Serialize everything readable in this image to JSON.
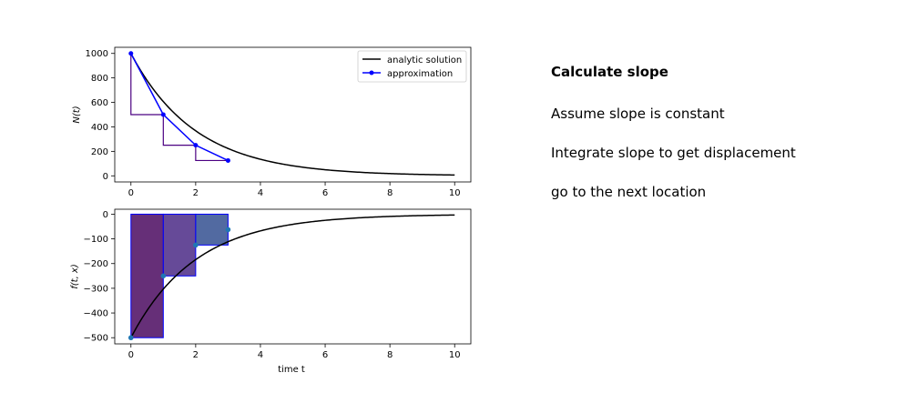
{
  "steps": [
    "Calculate slope",
    "Assume slope is constant",
    "Integrate slope to get displacement",
    "go to the next location"
  ],
  "colors": {
    "analytic": "#000000",
    "approx": "#0000ff",
    "stair": "#4b0082",
    "dot": "#1f77b4",
    "rect_fills": [
      "#4b0a60",
      "#4b2a86",
      "#345090"
    ]
  },
  "chart_data": [
    {
      "type": "line",
      "xlim": [
        -0.5,
        10.5
      ],
      "ylim": [
        -50,
        1050
      ],
      "x_ticks": [
        0,
        2,
        4,
        6,
        8,
        10
      ],
      "y_ticks": [
        0,
        200,
        400,
        600,
        800,
        1000
      ],
      "xlabel": "",
      "ylabel": "N(t)",
      "legend": {
        "position": "top-right",
        "entries": [
          "analytic solution",
          "approximation"
        ]
      },
      "grid": false,
      "series": [
        {
          "name": "analytic solution",
          "function": "1000*exp(-0.5*t)",
          "x_range": [
            0,
            10
          ]
        },
        {
          "name": "approximation",
          "x": [
            0,
            1,
            2,
            3
          ],
          "y": [
            1000,
            500,
            250,
            125
          ]
        }
      ],
      "steps": {
        "x": [
          0,
          0,
          1,
          1,
          2,
          2,
          3
        ],
        "y": [
          1000,
          500,
          500,
          250,
          250,
          125,
          125
        ]
      }
    },
    {
      "type": "bar",
      "xlim": [
        -0.5,
        10.5
      ],
      "ylim": [
        -525,
        20
      ],
      "x_ticks": [
        0,
        2,
        4,
        6,
        8,
        10
      ],
      "y_ticks": [
        0,
        -100,
        -200,
        -300,
        -400,
        -500
      ],
      "xlabel": "time t",
      "ylabel": "f(t, x)",
      "grid": false,
      "bars": [
        {
          "x0": 0,
          "x1": 1,
          "value": -500
        },
        {
          "x0": 1,
          "x1": 2,
          "value": -250
        },
        {
          "x0": 2,
          "x1": 3,
          "value": -125
        }
      ],
      "points": {
        "x": [
          0,
          1,
          2,
          3
        ],
        "y": [
          -500,
          -250,
          -125,
          -62.5
        ]
      },
      "curve": {
        "function": "-500*exp(-0.5*t)",
        "x_range": [
          0,
          10
        ]
      }
    }
  ]
}
